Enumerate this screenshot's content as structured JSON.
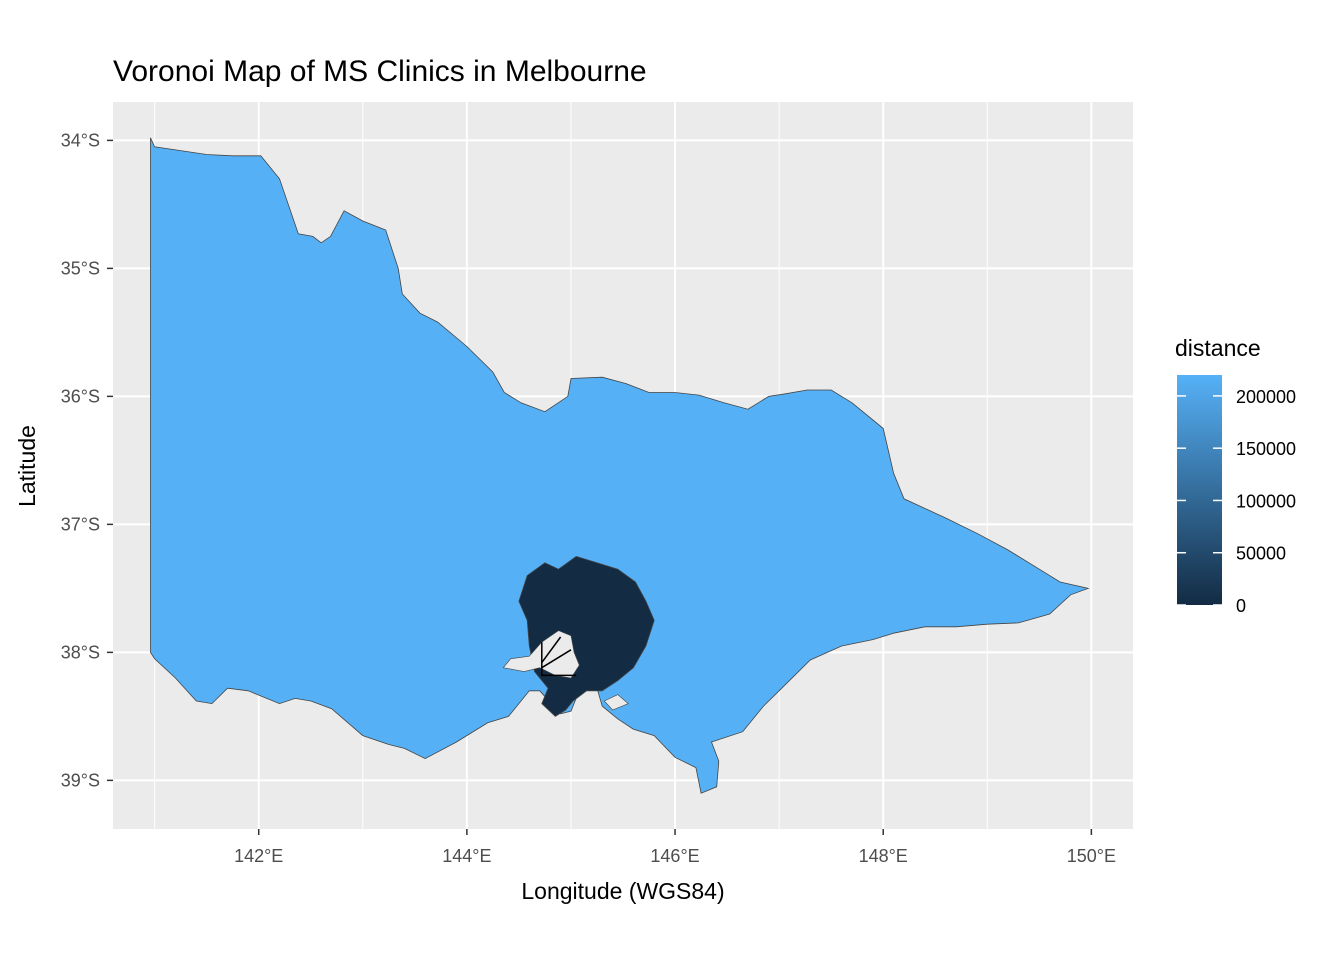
{
  "title": "Voronoi Map of MS Clinics in Melbourne",
  "x_axis": {
    "title": "Longitude (WGS84)",
    "range": [
      140.6,
      150.4
    ],
    "ticks": [
      {
        "value": 142,
        "label": "142°E"
      },
      {
        "value": 144,
        "label": "144°E"
      },
      {
        "value": 146,
        "label": "146°E"
      },
      {
        "value": 148,
        "label": "148°E"
      },
      {
        "value": 150,
        "label": "150°E"
      }
    ]
  },
  "y_axis": {
    "title": "Latitude",
    "range": [
      -39.38,
      -33.7
    ],
    "ticks": [
      {
        "value": -34,
        "label": "34°S"
      },
      {
        "value": -35,
        "label": "35°S"
      },
      {
        "value": -36,
        "label": "36°S"
      },
      {
        "value": -37,
        "label": "37°S"
      },
      {
        "value": -38,
        "label": "38°S"
      },
      {
        "value": -39,
        "label": "39°S"
      }
    ]
  },
  "legend": {
    "title": "distance",
    "placement": "right",
    "range": [
      0,
      220000
    ],
    "breaks": [
      {
        "value": 200000,
        "label": "200000"
      },
      {
        "value": 150000,
        "label": "150000"
      },
      {
        "value": 100000,
        "label": "100000"
      },
      {
        "value": 50000,
        "label": "50000"
      },
      {
        "value": 0,
        "label": "0"
      }
    ],
    "low_color": "#132B43",
    "high_color": "#56B1F7"
  },
  "colors": {
    "panel_background": "#EBEBEB",
    "grid": "#FFFFFF",
    "outline": "#444444"
  },
  "chart_data": {
    "type": "map",
    "regions": [
      {
        "distance": 218000,
        "polygon": [
          [
            140.96,
            -33.98
          ],
          [
            141.0,
            -34.05
          ],
          [
            141.5,
            -34.11
          ],
          [
            141.75,
            -34.12
          ],
          [
            142.02,
            -34.12
          ],
          [
            142.2,
            -34.3
          ],
          [
            142.38,
            -34.73
          ],
          [
            142.52,
            -34.75
          ],
          [
            142.6,
            -34.8
          ],
          [
            142.69,
            -34.75
          ],
          [
            142.82,
            -34.55
          ],
          [
            143.0,
            -34.63
          ],
          [
            143.22,
            -34.7
          ],
          [
            143.34,
            -35.0
          ],
          [
            143.38,
            -35.2
          ],
          [
            143.55,
            -35.35
          ],
          [
            143.72,
            -35.42
          ],
          [
            144.0,
            -35.61
          ],
          [
            144.25,
            -35.81
          ],
          [
            144.36,
            -35.97
          ],
          [
            144.52,
            -36.05
          ],
          [
            144.75,
            -36.12
          ],
          [
            144.97,
            -36.0
          ],
          [
            145.0,
            -35.86
          ],
          [
            145.3,
            -35.85
          ],
          [
            145.53,
            -35.9
          ],
          [
            145.75,
            -35.97
          ],
          [
            146.0,
            -35.97
          ],
          [
            146.23,
            -35.99
          ],
          [
            146.47,
            -36.05
          ],
          [
            146.7,
            -36.1
          ],
          [
            146.9,
            -36.0
          ],
          [
            147.06,
            -35.98
          ],
          [
            147.27,
            -35.95
          ],
          [
            147.5,
            -35.95
          ],
          [
            147.7,
            -36.05
          ],
          [
            148.0,
            -36.25
          ],
          [
            148.1,
            -36.6
          ],
          [
            148.2,
            -36.8
          ],
          [
            148.6,
            -36.95
          ],
          [
            148.9,
            -37.07
          ],
          [
            149.2,
            -37.2
          ],
          [
            149.5,
            -37.35
          ],
          [
            149.7,
            -37.45
          ],
          [
            149.97,
            -37.5
          ],
          [
            149.8,
            -37.55
          ],
          [
            149.6,
            -37.7
          ],
          [
            149.3,
            -37.77
          ],
          [
            149.0,
            -37.78
          ],
          [
            148.7,
            -37.8
          ],
          [
            148.4,
            -37.8
          ],
          [
            148.1,
            -37.85
          ],
          [
            147.9,
            -37.9
          ],
          [
            147.6,
            -37.95
          ],
          [
            147.3,
            -38.06
          ],
          [
            147.0,
            -38.3
          ],
          [
            146.85,
            -38.42
          ],
          [
            146.65,
            -38.62
          ],
          [
            146.35,
            -38.7
          ],
          [
            146.42,
            -38.85
          ],
          [
            146.4,
            -39.05
          ],
          [
            146.25,
            -39.1
          ],
          [
            146.2,
            -38.9
          ],
          [
            146.0,
            -38.82
          ],
          [
            145.8,
            -38.65
          ],
          [
            145.6,
            -38.6
          ],
          [
            145.45,
            -38.52
          ],
          [
            145.3,
            -38.42
          ],
          [
            145.25,
            -38.28
          ],
          [
            145.1,
            -38.22
          ],
          [
            145.07,
            -38.32
          ],
          [
            145.0,
            -38.46
          ],
          [
            144.9,
            -38.48
          ],
          [
            144.7,
            -38.3
          ],
          [
            144.6,
            -38.3
          ],
          [
            144.4,
            -38.5
          ],
          [
            144.2,
            -38.55
          ],
          [
            143.9,
            -38.7
          ],
          [
            143.6,
            -38.83
          ],
          [
            143.4,
            -38.75
          ],
          [
            143.25,
            -38.72
          ],
          [
            143.0,
            -38.65
          ],
          [
            142.7,
            -38.44
          ],
          [
            142.5,
            -38.38
          ],
          [
            142.35,
            -38.36
          ],
          [
            142.2,
            -38.4
          ],
          [
            141.9,
            -38.3
          ],
          [
            141.7,
            -38.28
          ],
          [
            141.55,
            -38.4
          ],
          [
            141.4,
            -38.38
          ],
          [
            141.2,
            -38.2
          ],
          [
            141.0,
            -38.05
          ],
          [
            140.96,
            -38.0
          ],
          [
            140.96,
            -36.0
          ]
        ]
      },
      {
        "distance": 0,
        "polygon": [
          [
            144.5,
            -37.6
          ],
          [
            144.58,
            -37.4
          ],
          [
            144.75,
            -37.3
          ],
          [
            144.88,
            -37.35
          ],
          [
            145.05,
            -37.25
          ],
          [
            145.25,
            -37.3
          ],
          [
            145.45,
            -37.35
          ],
          [
            145.62,
            -37.45
          ],
          [
            145.72,
            -37.6
          ],
          [
            145.8,
            -37.75
          ],
          [
            145.72,
            -37.95
          ],
          [
            145.6,
            -38.12
          ],
          [
            145.45,
            -38.22
          ],
          [
            145.3,
            -38.3
          ],
          [
            145.15,
            -38.3
          ],
          [
            145.02,
            -38.38
          ],
          [
            144.95,
            -38.45
          ],
          [
            144.85,
            -38.5
          ],
          [
            144.72,
            -38.4
          ],
          [
            144.78,
            -38.28
          ],
          [
            144.65,
            -38.15
          ],
          [
            144.6,
            -37.95
          ],
          [
            144.58,
            -37.75
          ]
        ]
      }
    ],
    "water": [
      [
        [
          144.72,
          -37.92
        ],
        [
          144.88,
          -37.83
        ],
        [
          145.0,
          -37.87
        ],
        [
          145.03,
          -38.0
        ],
        [
          145.08,
          -38.1
        ],
        [
          145.0,
          -38.2
        ],
        [
          144.85,
          -38.18
        ],
        [
          144.7,
          -38.12
        ],
        [
          144.55,
          -38.15
        ],
        [
          144.35,
          -38.12
        ],
        [
          144.42,
          -38.05
        ],
        [
          144.6,
          -38.03
        ]
      ],
      [
        [
          145.32,
          -38.38
        ],
        [
          145.45,
          -38.33
        ],
        [
          145.55,
          -38.4
        ],
        [
          145.4,
          -38.45
        ]
      ]
    ],
    "voronoi_boundaries": [
      [
        [
          144.72,
          -37.92
        ],
        [
          144.72,
          -38.18
        ],
        [
          145.05,
          -38.18
        ]
      ],
      [
        [
          144.72,
          -38.12
        ],
        [
          145.0,
          -37.98
        ]
      ],
      [
        [
          144.72,
          -38.08
        ],
        [
          144.9,
          -37.88
        ]
      ]
    ]
  }
}
